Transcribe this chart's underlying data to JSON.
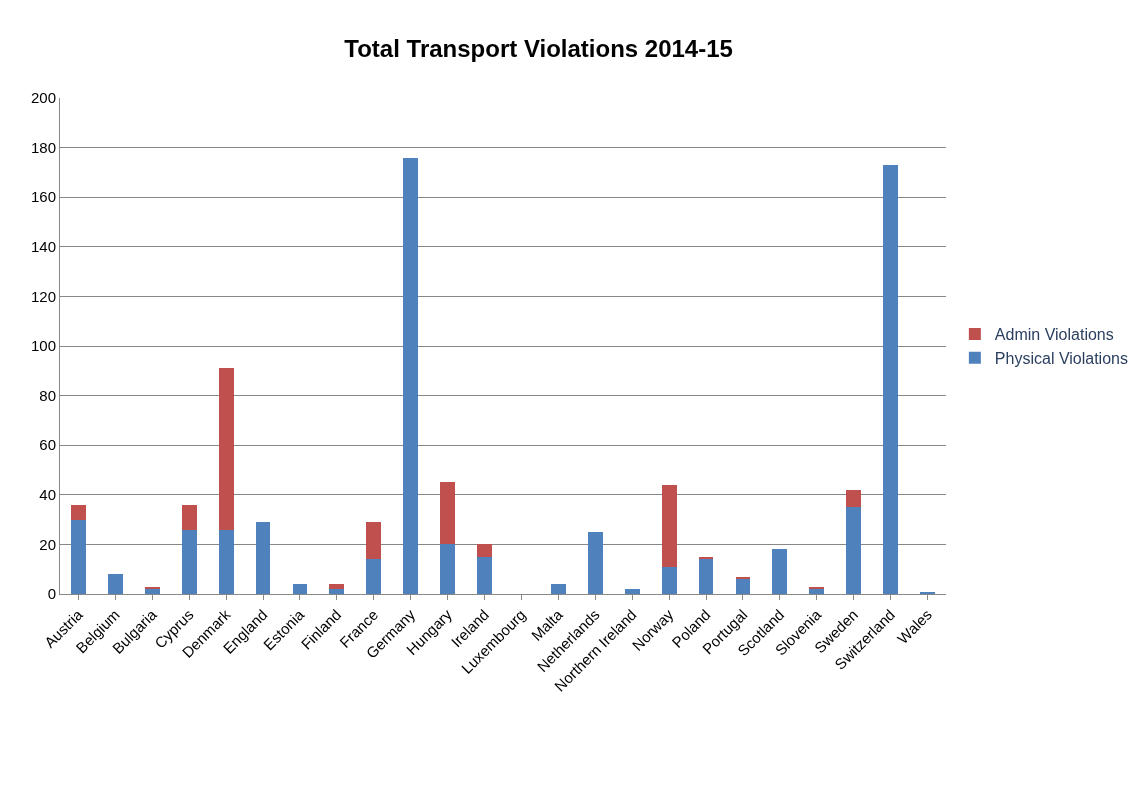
{
  "chart_data": {
    "type": "bar",
    "title": "Total Transport Violations 2014-15",
    "categories": [
      "Austria",
      "Belgium",
      "Bulgaria",
      "Cyprus",
      "Denmark",
      "England",
      "Estonia",
      "Finland",
      "France",
      "Germany",
      "Hungary",
      "Ireland",
      "Luxembourg",
      "Malta",
      "Netherlands",
      "Northern Ireland",
      "Norway",
      "Poland",
      "Portugal",
      "Scotland",
      "Slovenia",
      "Sweden",
      "Switzerland",
      "Wales"
    ],
    "series": [
      {
        "name": "Physical Violations",
        "color": "#4f81bd",
        "values": [
          30,
          8,
          2,
          26,
          26,
          29,
          4,
          2,
          14,
          176,
          20,
          15,
          0,
          4,
          25,
          2,
          11,
          14,
          6,
          18,
          2,
          35,
          173,
          1
        ]
      },
      {
        "name": "Admin Violations",
        "color": "#c0504d",
        "values": [
          6,
          0,
          1,
          10,
          65,
          0,
          0,
          2,
          15,
          0,
          25,
          5,
          0,
          0,
          0,
          0,
          33,
          1,
          1,
          0,
          1,
          7,
          0,
          0
        ]
      }
    ],
    "stacked": true,
    "ylim": [
      0,
      200
    ],
    "yticks": [
      0,
      20,
      40,
      60,
      80,
      100,
      120,
      140,
      160,
      180,
      200
    ],
    "grid": "y",
    "legend": "right"
  }
}
